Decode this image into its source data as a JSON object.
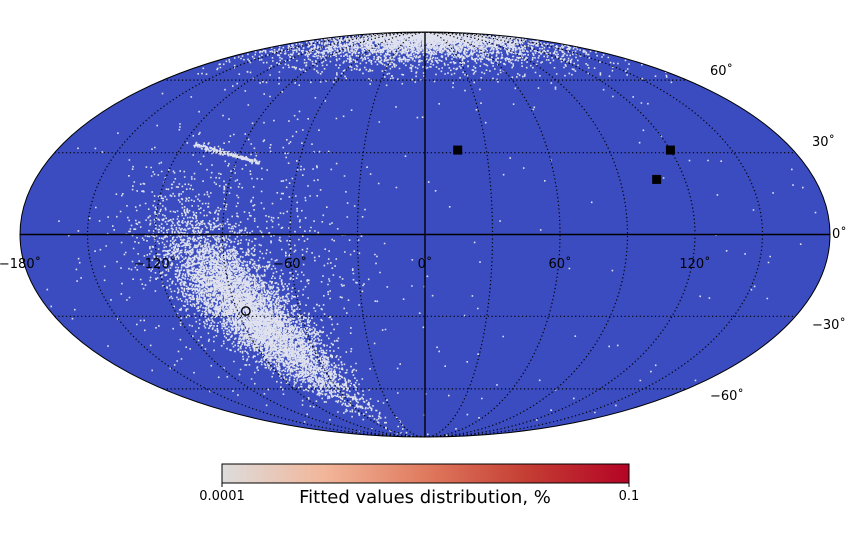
{
  "chart_data": {
    "type": "scatter",
    "projection": "mollweide",
    "title": "",
    "grid": true,
    "longitude_ticks": [
      "−180˚",
      "−120˚",
      "−60˚",
      "0˚",
      "60˚",
      "120˚"
    ],
    "latitude_ticks": [
      "60˚",
      "30˚",
      "0˚",
      "−30˚",
      "−60˚"
    ],
    "background_color": "#3a4cc0",
    "point_color": "#dfe2ee",
    "colorbar": {
      "label": "Fitted values distribution, %",
      "min_label": "0.0001",
      "max_label": "0.1",
      "scale": "log",
      "colormap": "coolwarm (upper half)",
      "colors": [
        "#dddcdc",
        "#f2b69a",
        "#e07a5f",
        "#c43d33",
        "#b40426"
      ]
    },
    "clusters": [
      {
        "lon_center": -85,
        "lat_center": -28,
        "lon_spread": 18,
        "lat_spread": 16,
        "density": "high"
      },
      {
        "lon_center": 0,
        "lat_center": 70,
        "lon_spread": 60,
        "lat_spread": 8,
        "density": "high"
      },
      {
        "lon_center": -100,
        "lat_center": 32,
        "lon_spread": 15,
        "lat_spread": 3,
        "density": "arc"
      }
    ],
    "markers": [
      {
        "shape": "square",
        "lon": 16,
        "lat": 31
      },
      {
        "shape": "square",
        "lon": 120,
        "lat": 31
      },
      {
        "shape": "square",
        "lon": 107,
        "lat": 20
      },
      {
        "shape": "open-circle",
        "lon": -86,
        "lat": -28
      }
    ]
  }
}
